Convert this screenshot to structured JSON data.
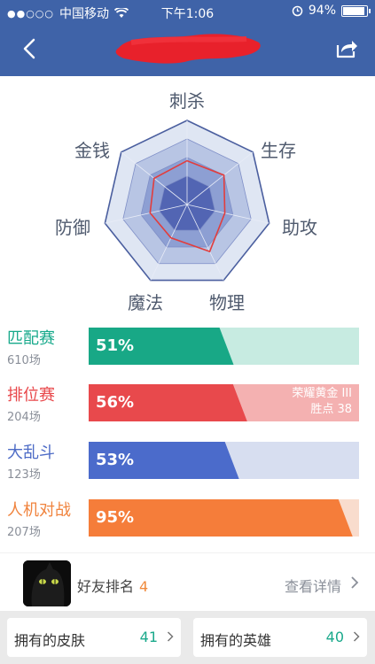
{
  "status_bar": {
    "carrier": "中国移动",
    "time": "下午1:06",
    "battery": "94%"
  },
  "radar": {
    "axes": [
      "刺杀",
      "生存",
      "助攻",
      "物理",
      "魔法",
      "防御",
      "金钱"
    ],
    "values": [
      0.52,
      0.56,
      0.46,
      0.62,
      0.44,
      0.45,
      0.5
    ],
    "colors": {
      "outer": "#dfe6f3",
      "ring2": "#b8c5e4",
      "ring3": "#8d9fd3",
      "inner": "#5265b3",
      "line": "#e23d3d"
    }
  },
  "modes": [
    {
      "name": "匹配赛",
      "count": "610场",
      "pct": "51%",
      "value": 0.51,
      "name_color": "#17a98b",
      "fill": "#18a886",
      "track": "#c7ebe1",
      "rank_line1": "",
      "rank_line2": ""
    },
    {
      "name": "排位赛",
      "count": "204场",
      "pct": "56%",
      "value": 0.56,
      "name_color": "#e8474a",
      "fill": "#e8494c",
      "track": "#f4b1b1",
      "rank_line1": "荣耀黄金 III",
      "rank_line2": "胜点 38"
    },
    {
      "name": "大乱斗",
      "count": "123场",
      "pct": "53%",
      "value": 0.53,
      "name_color": "#4d6bc6",
      "fill": "#4b6bcb",
      "track": "#d7def0",
      "rank_line1": "",
      "rank_line2": ""
    },
    {
      "name": "人机对战",
      "count": "207场",
      "pct": "95%",
      "value": 0.95,
      "name_color": "#f0833d",
      "fill": "#f57d3a",
      "track": "#f9dccd",
      "rank_line1": "",
      "rank_line2": ""
    }
  ],
  "friends": {
    "label": "好友排名",
    "rank": "4",
    "detail": "查看详情"
  },
  "bottom": {
    "skins_label": "拥有的皮肤",
    "skins_count": "41",
    "heroes_label": "拥有的英雄",
    "heroes_count": "40"
  }
}
